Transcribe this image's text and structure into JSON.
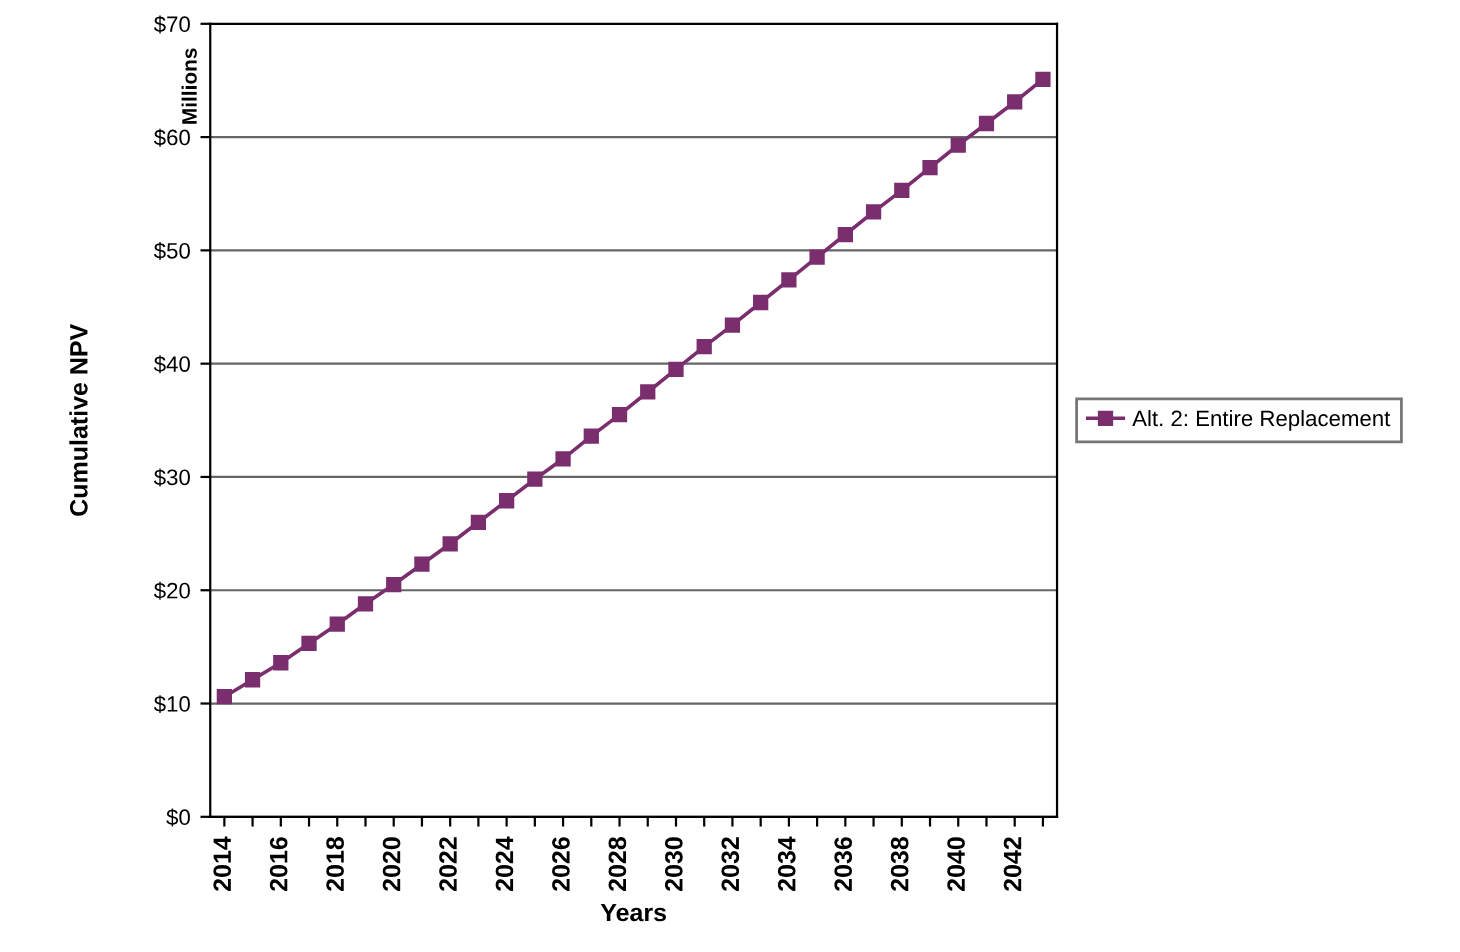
{
  "chart_data": {
    "type": "line",
    "xlabel": "Years",
    "ylabel": "Cumulative NPV",
    "annotations": [
      "Millions"
    ],
    "categories": [
      "2014",
      null,
      "2016",
      null,
      "2018",
      null,
      "2020",
      null,
      "2022",
      null,
      "2024",
      null,
      "2026",
      null,
      "2028",
      null,
      "2030",
      null,
      "2032",
      null,
      "2034",
      null,
      "2036",
      null,
      "2038",
      null,
      "2040",
      null,
      "2042",
      null
    ],
    "series": [
      {
        "name": "Alt. 2: Entire Replacement",
        "color": "#7a2e6e",
        "values": [
          10.6,
          12.1,
          13.6,
          15.3,
          17.0,
          18.8,
          20.5,
          22.3,
          24.1,
          26.0,
          27.9,
          29.8,
          31.6,
          33.6,
          35.5,
          37.5,
          39.5,
          41.5,
          43.4,
          45.4,
          47.4,
          49.4,
          51.4,
          53.4,
          55.3,
          57.3,
          59.3,
          61.2,
          63.1,
          65.1
        ]
      }
    ],
    "ylim": [
      0,
      70
    ],
    "yticks": [
      {
        "value": 0,
        "label": "$0"
      },
      {
        "value": 10,
        "label": "$10"
      },
      {
        "value": 20,
        "label": "$20"
      },
      {
        "value": 30,
        "label": "$30"
      },
      {
        "value": 40,
        "label": "$40"
      },
      {
        "value": 50,
        "label": "$50"
      },
      {
        "value": 60,
        "label": "$60"
      },
      {
        "value": 70,
        "label": "$70"
      }
    ],
    "grid": "y",
    "legend": "right",
    "marker": "square",
    "line_style": "solid"
  }
}
